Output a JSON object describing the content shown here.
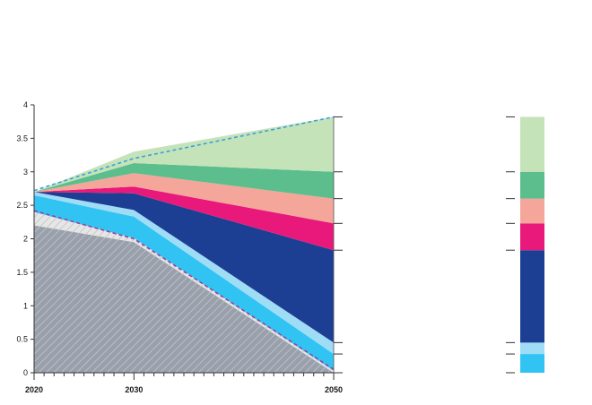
{
  "chart_data": {
    "type": "area",
    "title": "",
    "xlabel": "",
    "ylabel": "",
    "x": [
      2020,
      2030,
      2050
    ],
    "xticks": [
      "2020",
      "2030",
      "2050"
    ],
    "ylim": [
      0,
      4
    ],
    "yticks": [
      "0",
      "0.5",
      "1",
      "1.5",
      "2",
      "2.5",
      "3",
      "3.5",
      "4"
    ],
    "grid": false,
    "legend": "none",
    "series": [
      {
        "values": [
          2.2,
          1.95,
          0.0
        ],
        "color": "#9aa0ab",
        "pattern": "hatch"
      },
      {
        "values": [
          0.2,
          0.06,
          0.03
        ],
        "color": "#d9d9d9",
        "pattern": "hatch"
      },
      {
        "values": [
          0.25,
          0.32,
          0.25
        ],
        "color": "#31c4f3"
      },
      {
        "values": [
          0.05,
          0.1,
          0.17
        ],
        "color": "#9fdcf6"
      },
      {
        "values": [
          0.0,
          0.25,
          1.38
        ],
        "color": "#1c3f94"
      },
      {
        "values": [
          0.0,
          0.1,
          0.4
        ],
        "color": "#e8197a"
      },
      {
        "values": [
          0.0,
          0.2,
          0.37
        ],
        "color": "#f4a69a"
      },
      {
        "values": [
          0.0,
          0.15,
          0.4
        ],
        "color": "#5bbe8c"
      },
      {
        "values": [
          0.0,
          0.17,
          0.82
        ],
        "color": "#c5e3b8"
      }
    ],
    "outline_upper": {
      "values": [
        2.72,
        3.2,
        3.82
      ],
      "color": "#3aa0e0",
      "style": "dashed"
    },
    "outline_lower": {
      "values": [
        2.42,
        2.0,
        0.05
      ],
      "color": "#9b3fa0",
      "style": "dashed"
    },
    "bar_2050_stack": [
      {
        "values": 0.28,
        "color": "#31c4f3"
      },
      {
        "values": 0.17,
        "color": "#9fdcf6"
      },
      {
        "values": 1.38,
        "color": "#1c3f94"
      },
      {
        "values": 0.4,
        "color": "#e8197a"
      },
      {
        "values": 0.37,
        "color": "#f4a69a"
      },
      {
        "values": 0.4,
        "color": "#5bbe8c"
      },
      {
        "values": 0.82,
        "color": "#c5e3b8"
      }
    ]
  }
}
